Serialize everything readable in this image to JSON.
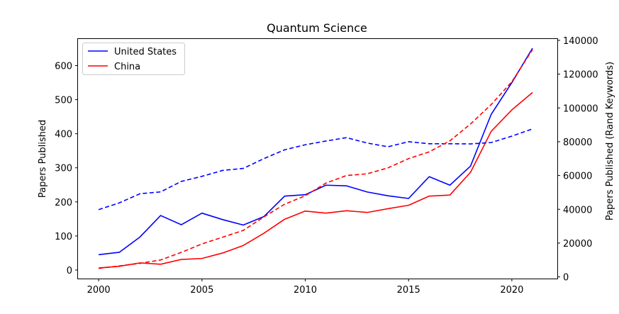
{
  "chart_data": {
    "type": "line",
    "title": "Quantum Science",
    "xlabel": "",
    "ylabel_left": "Papers Published",
    "ylabel_right": "Papers Published (Rand Keywords)",
    "x": [
      2000,
      2001,
      2002,
      2003,
      2004,
      2005,
      2006,
      2007,
      2008,
      2009,
      2010,
      2011,
      2012,
      2013,
      2014,
      2015,
      2016,
      2017,
      2018,
      2019,
      2020,
      2021
    ],
    "xlim": [
      1999,
      2022.2
    ],
    "ylim_left": [
      -25,
      678
    ],
    "ylim_right": [
      -1000,
      140800
    ],
    "x_ticks": [
      2000,
      2005,
      2010,
      2015,
      2020
    ],
    "y_ticks_left": [
      0,
      100,
      200,
      300,
      400,
      500,
      600
    ],
    "y_ticks_right": [
      0,
      20000,
      40000,
      60000,
      80000,
      100000,
      120000,
      140000
    ],
    "series": [
      {
        "name": "United States",
        "axis": "left",
        "style": "solid",
        "color": "#0000ff",
        "values": [
          45,
          52,
          97,
          160,
          133,
          167,
          148,
          132,
          157,
          217,
          221,
          249,
          247,
          229,
          218,
          210,
          274,
          249,
          305,
          457,
          550,
          651
        ]
      },
      {
        "name": "China",
        "axis": "left",
        "style": "solid",
        "color": "#ff0000",
        "values": [
          6,
          11,
          21,
          17,
          31,
          34,
          50,
          72,
          108,
          149,
          173,
          167,
          174,
          169,
          180,
          190,
          217,
          220,
          287,
          407,
          470,
          521
        ]
      },
      {
        "name": "",
        "axis": "right",
        "style": "dashed",
        "color": "#0000ff",
        "values": [
          39800,
          43800,
          49200,
          50300,
          56500,
          59500,
          63000,
          64200,
          70000,
          75200,
          78200,
          80400,
          82400,
          79200,
          77000,
          80000,
          78800,
          78800,
          78700,
          79500,
          83300,
          87600
        ]
      },
      {
        "name": "",
        "axis": "right",
        "style": "dashed",
        "color": "#ff0000",
        "values": [
          5000,
          6500,
          8000,
          10000,
          14500,
          19500,
          23500,
          27500,
          35500,
          43000,
          48000,
          55500,
          60000,
          61000,
          64500,
          70000,
          74000,
          80500,
          90500,
          102000,
          115500,
          134500
        ]
      }
    ],
    "legend": {
      "placement": "top-left",
      "entries": [
        "United States",
        "China"
      ]
    },
    "grid": false
  }
}
